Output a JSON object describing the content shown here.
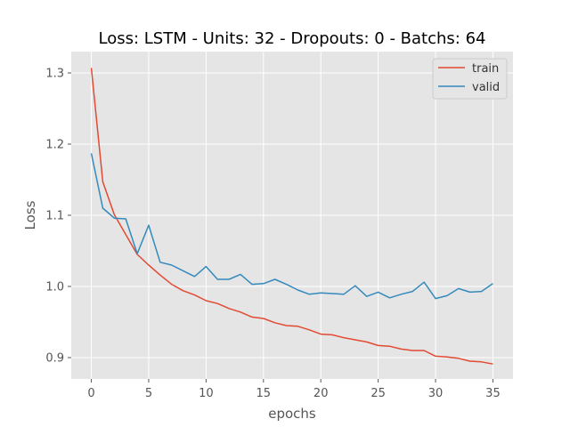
{
  "chart_data": {
    "type": "line",
    "title": "Loss: LSTM - Units: 32 - Dropouts: 0 - Batchs: 64",
    "xlabel": "epochs",
    "ylabel": "Loss",
    "xlim": [
      -1.75,
      36.75
    ],
    "ylim": [
      0.87,
      1.33
    ],
    "xticks": [
      0,
      5,
      10,
      15,
      20,
      25,
      30,
      35
    ],
    "yticks": [
      0.9,
      1.0,
      1.1,
      1.2,
      1.3
    ],
    "ytick_labels": [
      "0.9",
      "1.0",
      "1.1",
      "1.2",
      "1.3"
    ],
    "grid": true,
    "legend_position": "upper-right",
    "x": [
      0,
      1,
      2,
      3,
      4,
      5,
      6,
      7,
      8,
      9,
      10,
      11,
      12,
      13,
      14,
      15,
      16,
      17,
      18,
      19,
      20,
      21,
      22,
      23,
      24,
      25,
      26,
      27,
      28,
      29,
      30,
      31,
      32,
      33,
      34,
      35
    ],
    "series": [
      {
        "name": "train",
        "color": "#E24A33",
        "values": [
          1.307,
          1.147,
          1.101,
          1.073,
          1.045,
          1.03,
          1.016,
          1.003,
          0.994,
          0.988,
          0.98,
          0.976,
          0.969,
          0.964,
          0.957,
          0.955,
          0.949,
          0.945,
          0.944,
          0.939,
          0.933,
          0.932,
          0.928,
          0.925,
          0.922,
          0.917,
          0.916,
          0.912,
          0.91,
          0.91,
          0.902,
          0.901,
          0.899,
          0.895,
          0.894,
          0.891
        ]
      },
      {
        "name": "valid",
        "color": "#348ABD",
        "values": [
          1.187,
          1.11,
          1.096,
          1.095,
          1.046,
          1.086,
          1.034,
          1.03,
          1.022,
          1.014,
          1.028,
          1.01,
          1.01,
          1.017,
          1.003,
          1.004,
          1.01,
          1.003,
          0.995,
          0.989,
          0.991,
          0.99,
          0.989,
          1.001,
          0.986,
          0.992,
          0.984,
          0.989,
          0.993,
          1.006,
          0.983,
          0.987,
          0.997,
          0.992,
          0.993,
          1.004
        ]
      }
    ]
  }
}
